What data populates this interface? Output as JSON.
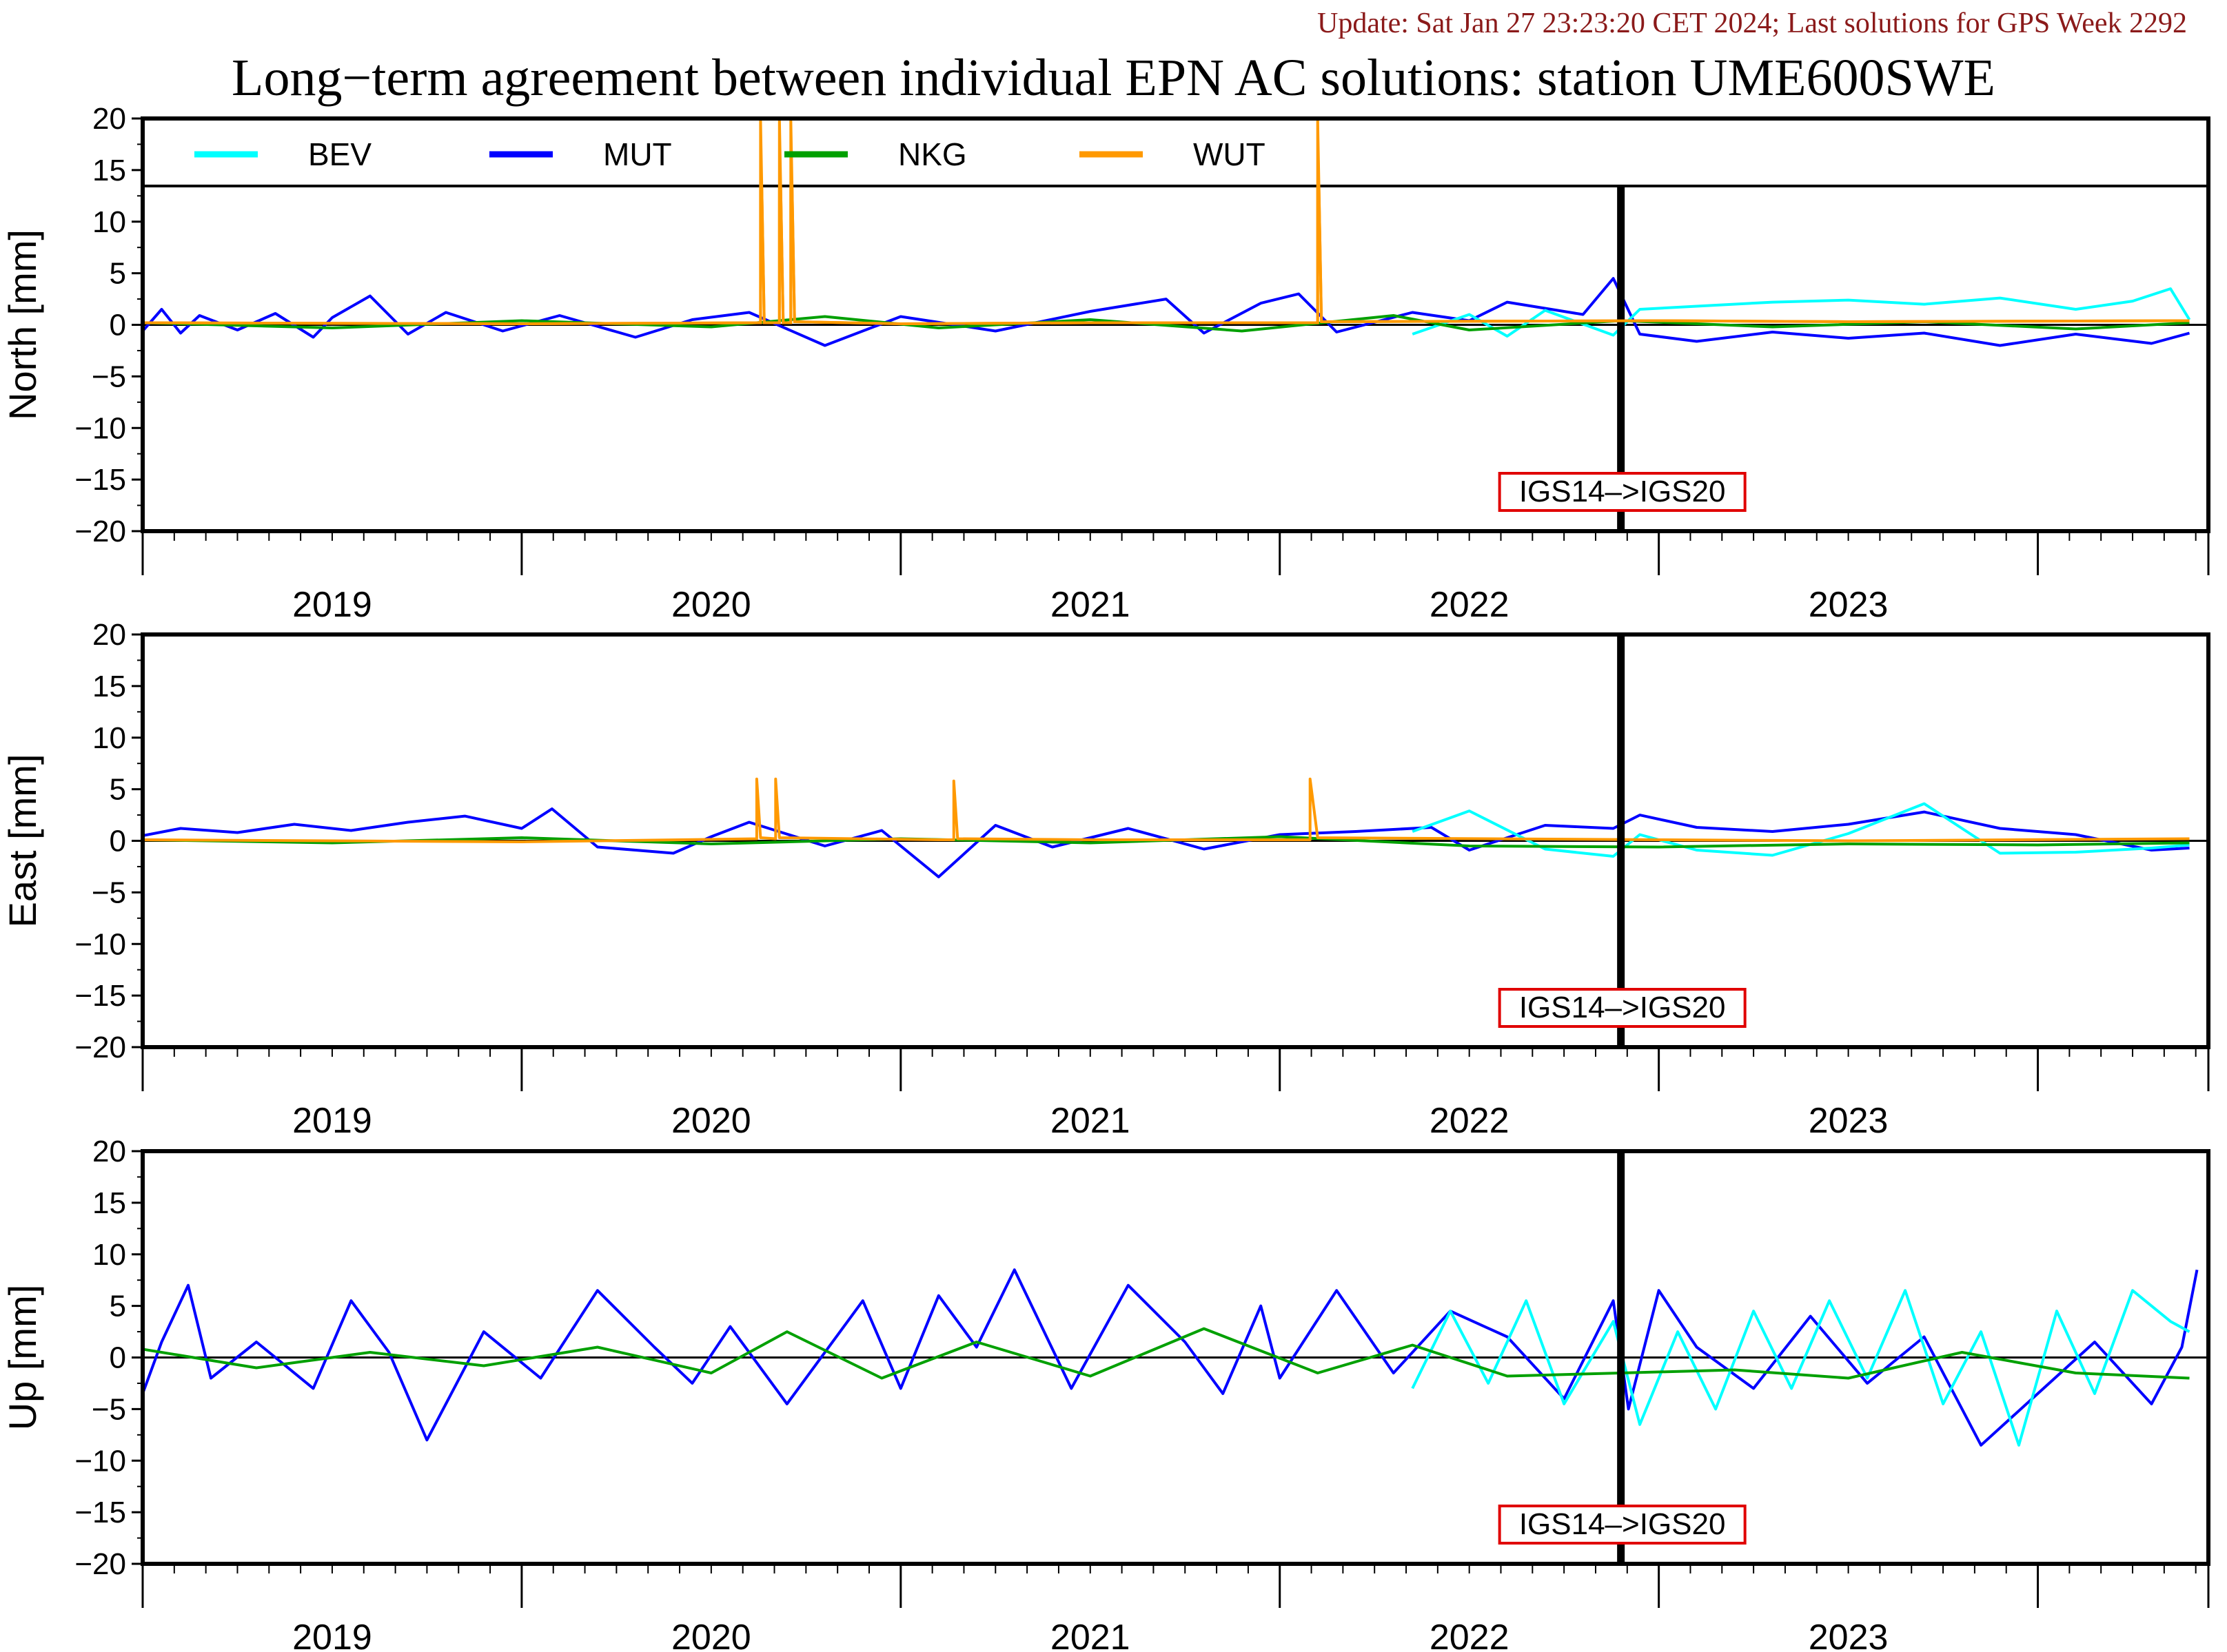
{
  "header": {
    "update": "Update: Sat Jan 27 23:23:20 CET 2024; Last solutions for GPS Week 2292",
    "title": "Long−term agreement between individual EPN AC solutions: station UME600SWE"
  },
  "chart_data": {
    "type": "line",
    "x_range": [
      2018.5,
      2023.95
    ],
    "ylim": [
      -20,
      20
    ],
    "yticks": [
      "20",
      "15",
      "10",
      "5",
      "0",
      "−5",
      "−10",
      "−15",
      "−20"
    ],
    "year_labels": [
      "2019",
      "2020",
      "2021",
      "2022",
      "2023"
    ],
    "frame_change": {
      "x": 2022.4,
      "label": "IGS14–>IGS20"
    },
    "legend": [
      {
        "name": "BEV",
        "color": "#00ffff"
      },
      {
        "name": "MUT",
        "color": "#0000ff"
      },
      {
        "name": "NKG",
        "color": "#00a000"
      },
      {
        "name": "WUT",
        "color": "#ff9900"
      }
    ],
    "panels": [
      {
        "ylabel": "North [mm]",
        "series": [
          {
            "name": "MUT",
            "color": "#0000ff",
            "x": [
              2018.5,
              2018.55,
              2018.6,
              2018.65,
              2018.75,
              2018.85,
              2018.95,
              2019.0,
              2019.1,
              2019.2,
              2019.3,
              2019.45,
              2019.6,
              2019.8,
              2019.95,
              2020.1,
              2020.3,
              2020.5,
              2020.75,
              2021.0,
              2021.2,
              2021.3,
              2021.45,
              2021.55,
              2021.65,
              2021.85,
              2022.0,
              2022.1,
              2022.3,
              2022.38,
              2022.45,
              2022.6,
              2022.8,
              2023.0,
              2023.2,
              2023.4,
              2023.6,
              2023.8,
              2023.9
            ],
            "y": [
              -0.6,
              1.5,
              -0.8,
              0.9,
              -0.5,
              1.1,
              -1.2,
              0.7,
              2.8,
              -0.9,
              1.2,
              -0.6,
              0.9,
              -1.2,
              0.5,
              1.2,
              -2.0,
              0.8,
              -0.6,
              1.3,
              2.5,
              -0.8,
              2.1,
              3.0,
              -0.7,
              1.2,
              0.4,
              2.2,
              1.0,
              4.5,
              -0.9,
              -1.6,
              -0.7,
              -1.3,
              -0.8,
              -2.0,
              -0.9,
              -1.8,
              -0.8
            ]
          },
          {
            "name": "BEV",
            "color": "#00ffff",
            "x": [
              2021.85,
              2022.0,
              2022.1,
              2022.2,
              2022.38,
              2022.45,
              2022.6,
              2022.8,
              2023.0,
              2023.2,
              2023.4,
              2023.6,
              2023.75,
              2023.85,
              2023.9
            ],
            "y": [
              -0.9,
              1.0,
              -1.1,
              1.4,
              -1.0,
              1.5,
              1.8,
              2.2,
              2.4,
              2.0,
              2.6,
              1.5,
              2.3,
              3.5,
              0.5
            ]
          },
          {
            "name": "NKG",
            "color": "#00a000",
            "x": [
              2018.5,
              2019.0,
              2019.5,
              2020.0,
              2020.3,
              2020.6,
              2021.0,
              2021.4,
              2021.8,
              2022.0,
              2022.4,
              2022.8,
              2023.2,
              2023.6,
              2023.9
            ],
            "y": [
              0.2,
              -0.3,
              0.4,
              -0.2,
              0.8,
              -0.3,
              0.5,
              -0.6,
              0.9,
              -0.5,
              0.4,
              -0.2,
              0.3,
              -0.4,
              0.2
            ]
          },
          {
            "name": "WUT",
            "color": "#ff9900",
            "x": [
              2018.5,
              2019.5,
              2020.13,
              2020.13,
              2020.14,
              2020.18,
              2020.18,
              2020.19,
              2020.21,
              2020.21,
              2020.22,
              2020.5,
              2021.0,
              2021.6,
              2021.6,
              2021.61,
              2022.5,
              2023.0,
              2023.9
            ],
            "y": [
              0.2,
              0.1,
              0.2,
              20,
              0.2,
              0.2,
              20,
              0.2,
              0.2,
              20,
              0.3,
              0.1,
              0.2,
              0.2,
              20,
              0.3,
              0.4,
              0.3,
              0.4
            ]
          }
        ]
      },
      {
        "ylabel": "East [mm]",
        "series": [
          {
            "name": "MUT",
            "color": "#0000ff",
            "x": [
              2018.5,
              2018.6,
              2018.75,
              2018.9,
              2019.05,
              2019.2,
              2019.35,
              2019.5,
              2019.58,
              2019.7,
              2019.9,
              2020.0,
              2020.1,
              2020.3,
              2020.45,
              2020.6,
              2020.75,
              2020.9,
              2021.1,
              2021.3,
              2021.5,
              2021.7,
              2021.9,
              2022.0,
              2022.2,
              2022.38,
              2022.45,
              2022.6,
              2022.8,
              2023.0,
              2023.2,
              2023.4,
              2023.6,
              2023.8,
              2023.9
            ],
            "y": [
              0.5,
              1.2,
              0.8,
              1.6,
              1.0,
              1.8,
              2.4,
              1.2,
              3.1,
              -0.6,
              -1.2,
              0.4,
              1.8,
              -0.5,
              1.0,
              -3.5,
              1.5,
              -0.6,
              1.2,
              -0.8,
              0.6,
              0.9,
              1.3,
              -0.9,
              1.5,
              1.2,
              2.5,
              1.3,
              0.9,
              1.6,
              2.8,
              1.2,
              0.6,
              -0.9,
              -0.7
            ]
          },
          {
            "name": "BEV",
            "color": "#00ffff",
            "x": [
              2021.85,
              2022.0,
              2022.2,
              2022.38,
              2022.45,
              2022.6,
              2022.8,
              2023.0,
              2023.2,
              2023.4,
              2023.6,
              2023.8,
              2023.9
            ],
            "y": [
              0.9,
              2.9,
              -0.8,
              -1.5,
              0.6,
              -0.9,
              -1.4,
              0.7,
              3.6,
              -1.2,
              -1.1,
              -0.7,
              -0.4
            ]
          },
          {
            "name": "NKG",
            "color": "#00a000",
            "x": [
              2018.5,
              2019.0,
              2019.5,
              2020.0,
              2020.5,
              2021.0,
              2021.5,
              2022.0,
              2022.5,
              2023.0,
              2023.5,
              2023.9
            ],
            "y": [
              0.1,
              -0.2,
              0.3,
              -0.3,
              0.2,
              -0.2,
              0.4,
              -0.5,
              -0.6,
              -0.3,
              -0.4,
              -0.2
            ]
          },
          {
            "name": "WUT",
            "color": "#ff9900",
            "x": [
              2018.5,
              2019.5,
              2020.12,
              2020.12,
              2020.13,
              2020.17,
              2020.17,
              2020.18,
              2020.6,
              2020.64,
              2020.64,
              2020.65,
              2021.0,
              2021.58,
              2021.58,
              2021.6,
              2022.5,
              2023.0,
              2023.9
            ],
            "y": [
              0.1,
              -0.1,
              0.2,
              6.0,
              0.3,
              0.2,
              6.0,
              0.3,
              0.1,
              0.1,
              5.8,
              0.2,
              0.1,
              0.1,
              6.0,
              0.3,
              0.1,
              0.0,
              0.2
            ]
          }
        ]
      },
      {
        "ylabel": "Up [mm]",
        "series": [
          {
            "name": "MUT",
            "color": "#0000ff",
            "x": [
              2018.5,
              2018.55,
              2018.62,
              2018.68,
              2018.8,
              2018.95,
              2019.05,
              2019.15,
              2019.25,
              2019.4,
              2019.55,
              2019.7,
              2019.85,
              2019.95,
              2020.05,
              2020.2,
              2020.4,
              2020.5,
              2020.6,
              2020.7,
              2020.8,
              2020.95,
              2021.1,
              2021.25,
              2021.35,
              2021.45,
              2021.5,
              2021.65,
              2021.8,
              2021.95,
              2022.1,
              2022.25,
              2022.38,
              2022.42,
              2022.5,
              2022.6,
              2022.75,
              2022.9,
              2023.05,
              2023.2,
              2023.35,
              2023.5,
              2023.65,
              2023.8,
              2023.88,
              2023.92
            ],
            "y": [
              -3.5,
              1.5,
              7.0,
              -2.0,
              1.5,
              -3.0,
              5.5,
              0.5,
              -8.0,
              2.5,
              -2.0,
              6.5,
              1.0,
              -2.5,
              3.0,
              -4.5,
              5.5,
              -3.0,
              6.0,
              1.0,
              8.5,
              -3.0,
              7.0,
              1.5,
              -3.5,
              5.0,
              -2.0,
              6.5,
              -1.5,
              4.5,
              2.0,
              -4.0,
              5.5,
              -5.0,
              6.5,
              1.0,
              -3.0,
              4.0,
              -2.5,
              2.0,
              -8.5,
              -3.5,
              1.5,
              -4.5,
              1.0,
              8.5
            ]
          },
          {
            "name": "BEV",
            "color": "#00ffff",
            "x": [
              2021.85,
              2021.95,
              2022.05,
              2022.15,
              2022.25,
              2022.38,
              2022.45,
              2022.55,
              2022.65,
              2022.75,
              2022.85,
              2022.95,
              2023.05,
              2023.15,
              2023.25,
              2023.35,
              2023.45,
              2023.55,
              2023.65,
              2023.75,
              2023.85,
              2023.9
            ],
            "y": [
              -3.0,
              4.5,
              -2.5,
              5.5,
              -4.5,
              3.5,
              -6.5,
              2.5,
              -5.0,
              4.5,
              -3.0,
              5.5,
              -2.0,
              6.5,
              -4.5,
              2.5,
              -8.5,
              4.5,
              -3.5,
              6.5,
              3.5,
              2.5
            ]
          },
          {
            "name": "NKG",
            "color": "#00a000",
            "x": [
              2018.5,
              2018.8,
              2019.1,
              2019.4,
              2019.7,
              2020.0,
              2020.2,
              2020.45,
              2020.7,
              2021.0,
              2021.3,
              2021.6,
              2021.85,
              2022.1,
              2022.4,
              2022.7,
              2023.0,
              2023.3,
              2023.6,
              2023.9
            ],
            "y": [
              0.8,
              -1.0,
              0.5,
              -0.8,
              1.0,
              -1.5,
              2.5,
              -2.0,
              1.5,
              -1.8,
              2.8,
              -1.5,
              1.2,
              -1.8,
              -1.5,
              -1.2,
              -2.0,
              0.5,
              -1.5,
              -2.0
            ]
          }
        ]
      }
    ]
  }
}
